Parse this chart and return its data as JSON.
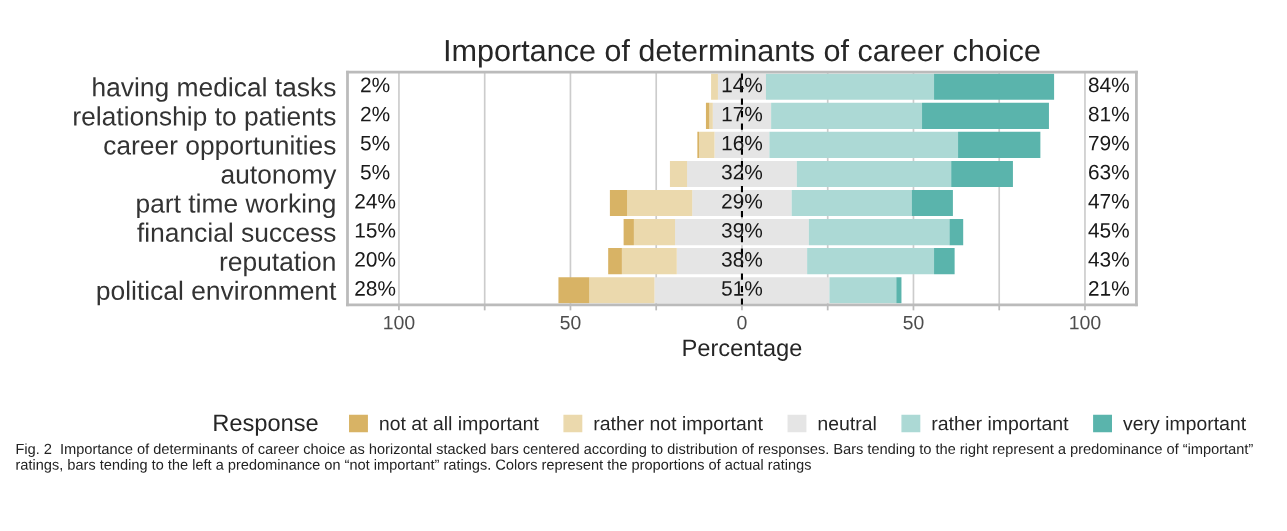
{
  "chart_data": {
    "type": "bar",
    "orientation": "horizontal",
    "stacked": true,
    "title": "Importance of determinants of career choice",
    "xlabel": "Percentage",
    "legend_title": "Response",
    "categories": [
      "having medical tasks",
      "relationship to patients",
      "career opportunities",
      "autonomy",
      "part time working",
      "financial success",
      "reputation",
      "political environment"
    ],
    "series": [
      {
        "name": "neutral",
        "color": "#e5e5e5",
        "values": [
          -7,
          -8.5,
          -8,
          -16,
          -14.5,
          -19.5,
          -19,
          -25.5
        ]
      },
      {
        "name": "rather not important",
        "color": "#ebd9ad",
        "values": [
          -2,
          -1,
          -4.5,
          -5,
          -19,
          -12,
          -16,
          -19
        ]
      },
      {
        "name": "not at all important",
        "color": "#d8b365",
        "values": [
          0,
          -1,
          -0.5,
          0,
          -5,
          -3,
          -4,
          -9
        ]
      },
      {
        "color": "#e5e5e5",
        "values": [
          7,
          8.5,
          8,
          16,
          14.5,
          19.5,
          19,
          25.5
        ]
      },
      {
        "name": "rather important",
        "color": "#acd9d5",
        "values": [
          49,
          44,
          55,
          45,
          35,
          41,
          37,
          19.5
        ]
      },
      {
        "name": "very important",
        "color": "#5ab4ac",
        "values": [
          35,
          37,
          24,
          18,
          12,
          4,
          6,
          1.5
        ]
      }
    ],
    "xlim": [
      -115,
      115
    ],
    "xticks": [
      {
        "value": -100,
        "label": "100"
      },
      {
        "value": -75,
        "label": null
      },
      {
        "value": -50,
        "label": "50"
      },
      {
        "value": -25,
        "label": null
      },
      0,
      {
        "value": 25,
        "label": null
      },
      50,
      {
        "value": 75,
        "label": null
      },
      100
    ],
    "grid": "x",
    "legend": "bottom",
    "ref_lines": [
      {
        "axis": "x",
        "value": 0,
        "color": "#000000",
        "line_style": "dashed"
      }
    ],
    "annotations": [
      "14%",
      "17%",
      "16%",
      "32%",
      "29%",
      "39%",
      "38%",
      "51%",
      "2%",
      "2%",
      "5%",
      "5%",
      "24%",
      "15%",
      "20%",
      "28%",
      "84%",
      "81%",
      "79%",
      "63%",
      "47%",
      "45%",
      "43%",
      "21%",
      "Fig. 2  Importance of determinants of career choice as horizontal stacked bars centered according to distribution of responses. Bars tending to the right represent a predominance of “important” ratings, bars tending to the left a predominance on “not important” ratings. Colors represent the proportions of actual ratings"
    ]
  }
}
